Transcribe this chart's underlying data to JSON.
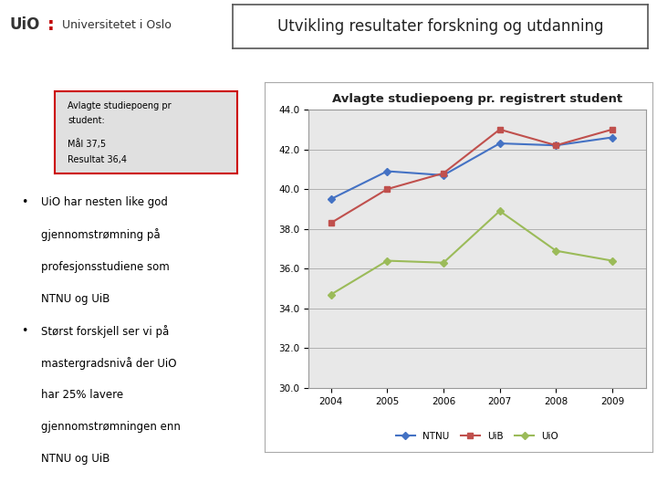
{
  "title_box": "Utvikling resultater forskning og utdanning",
  "chart_title": "Avlagte studiepoeng pr. registrert student",
  "years": [
    2004,
    2005,
    2006,
    2007,
    2008,
    2009
  ],
  "NTNU": [
    39.5,
    40.9,
    40.7,
    42.3,
    42.2,
    42.6
  ],
  "UiB": [
    38.3,
    40.0,
    40.8,
    43.0,
    42.2,
    43.0
  ],
  "UiO": [
    34.7,
    36.4,
    36.3,
    38.9,
    36.9,
    36.4
  ],
  "color_NTNU": "#4472C4",
  "color_UiB": "#C0504D",
  "color_UiO": "#9BBB59",
  "ylim_min": 30.0,
  "ylim_max": 44.0,
  "yticks": [
    30.0,
    32.0,
    34.0,
    36.0,
    38.0,
    40.0,
    42.0,
    44.0
  ],
  "info_box_line1": "Avlagte studiepoeng pr",
  "info_box_line2": "student:",
  "info_maal": "Mål 37,5",
  "info_resultat": "Resultat 36,4",
  "bullet1_line1": "UiO har nesten like god",
  "bullet1_line2": "gjennomstrømning på",
  "bullet1_line3": "profesjonsstudiene som",
  "bullet1_line4": "NTNU og UiB",
  "bullet2_line1": "Størst forskjell ser vi på",
  "bullet2_line2": "mastergradsnivå der UiO",
  "bullet2_line3": "har 25% lavere",
  "bullet2_line4": "gjennomstrømningen enn",
  "bullet2_line5": "NTNU og UiB",
  "logo_uio": "UiO",
  "logo_colon": ":",
  "logo_name": "Universitetet i Oslo",
  "bg_color": "#ffffff",
  "grid_color": "#b0b0b0",
  "chart_bg": "#e8e8e8",
  "chart_border": "#999999"
}
